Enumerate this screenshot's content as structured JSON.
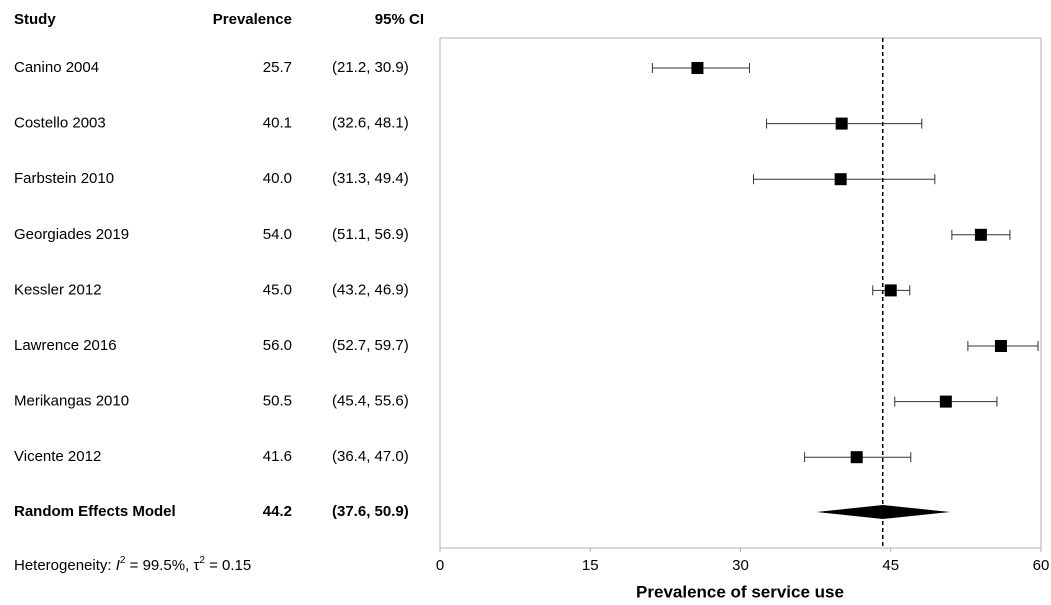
{
  "chart_data": {
    "type": "forest",
    "columns": {
      "study": "Study",
      "prevalence": "Prevalence",
      "ci": "95% CI"
    },
    "categories": [
      "Canino 2004",
      "Costello 2003",
      "Farbstein 2010",
      "Georgiades 2019",
      "Kessler 2012",
      "Lawrence 2016",
      "Merikangas 2010",
      "Vicente 2012"
    ],
    "values": [
      25.7,
      40.1,
      40.0,
      54.0,
      45.0,
      56.0,
      50.5,
      41.6
    ],
    "value_labels": [
      "25.7",
      "40.1",
      "40.0",
      "54.0",
      "45.0",
      "56.0",
      "50.5",
      "41.6"
    ],
    "lower": [
      21.2,
      32.6,
      31.3,
      51.1,
      43.2,
      52.7,
      45.4,
      36.4
    ],
    "upper": [
      30.9,
      48.1,
      49.4,
      56.9,
      46.9,
      59.7,
      55.6,
      47.0
    ],
    "ci_labels": [
      "(21.2, 30.9)",
      "(32.6, 48.1)",
      "(31.3, 49.4)",
      "(51.1, 56.9)",
      "(43.2, 46.9)",
      "(52.7, 59.7)",
      "(45.4, 55.6)",
      "(36.4, 47.0)"
    ],
    "summary": {
      "name": "Random Effects Model",
      "value": 44.2,
      "value_label": "44.2",
      "lower": 37.6,
      "upper": 50.9,
      "ci_label": "(37.6, 50.9)"
    },
    "heterogeneity": [
      "Heterogeneity: ",
      "I",
      "2",
      " = 99.5%, ",
      "τ",
      "2",
      " = 0.15"
    ],
    "xlim": [
      0,
      60
    ],
    "xticks": [
      0,
      15,
      30,
      45,
      60
    ],
    "xlabel": "Prevalence of service use",
    "color": "#000000",
    "reference_line": "dashed"
  }
}
